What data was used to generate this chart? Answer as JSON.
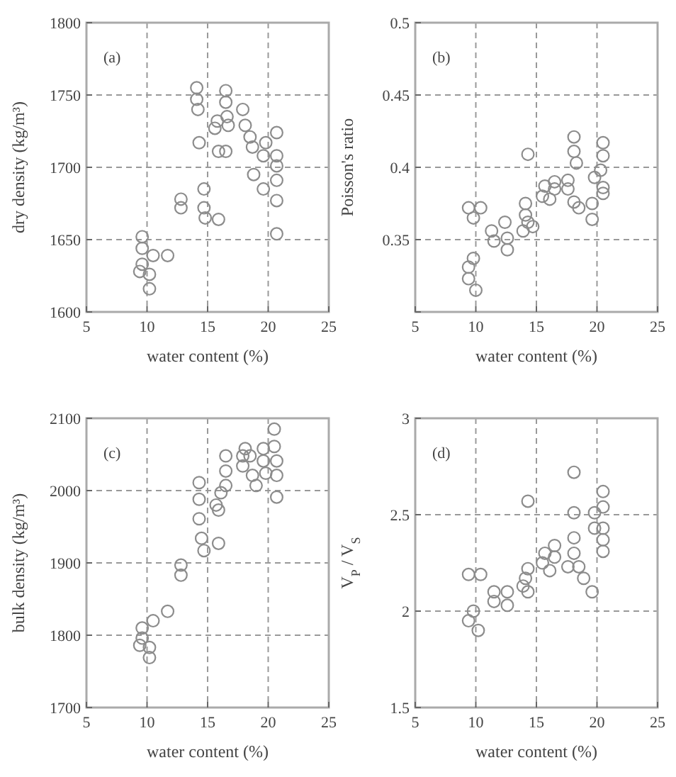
{
  "chart_data": [
    {
      "type": "scatter",
      "xlabel": "water content (%)",
      "ylabel": "dry density (kg/m³)",
      "annotations": [
        "(a)"
      ],
      "xlim": [
        5,
        25
      ],
      "xticks": [
        5,
        10,
        15,
        20,
        25
      ],
      "ylim": [
        1600,
        1800
      ],
      "yticks": [
        1600,
        1650,
        1700,
        1750,
        1800
      ],
      "grid": true,
      "marker": "circle",
      "series": [
        {
          "color": "#8c8c8c",
          "x": [
            14.1,
            14.1,
            14.2,
            16.5,
            16.5,
            16.6,
            16.7,
            15.8,
            15.6,
            14.3,
            15.9,
            16.5,
            17.9,
            18.1,
            18.5,
            18.7,
            19.8,
            20.7,
            20.7,
            19.6,
            20.7,
            20.7,
            18.8,
            19.6,
            20.7,
            12.8,
            12.8,
            14.7,
            14.7,
            14.8,
            15.9,
            20.7,
            9.6,
            9.6,
            10.5,
            11.7,
            9.6,
            10.2,
            10.2,
            9.4
          ],
          "values": [
            1755,
            1747,
            1740,
            1753,
            1745,
            1735,
            1729,
            1732,
            1727,
            1717,
            1711,
            1711,
            1740,
            1729,
            1721,
            1714,
            1717,
            1724,
            1708,
            1708,
            1701,
            1691,
            1695,
            1685,
            1677,
            1678,
            1672,
            1685,
            1672,
            1665,
            1664,
            1654,
            1652,
            1644,
            1639,
            1639,
            1633,
            1626,
            1616,
            1628
          ]
        }
      ]
    },
    {
      "type": "scatter",
      "xlabel": "water content (%)",
      "ylabel": "Poisson's ratio",
      "annotations": [
        "(b)"
      ],
      "xlim": [
        5,
        25
      ],
      "xticks": [
        5,
        10,
        15,
        20,
        25
      ],
      "ylim": [
        0.3,
        0.5
      ],
      "yticks": [
        {
          "value": 0.3,
          "label": null
        },
        0.35,
        0.4,
        0.45,
        0.5
      ],
      "grid": true,
      "marker": "circle",
      "series": [
        {
          "color": "#8c8c8c",
          "x": [
            14.3,
            18.1,
            18.1,
            18.3,
            17.6,
            17.6,
            18.1,
            18.5,
            19.6,
            19.6,
            20.5,
            20.5,
            20.3,
            19.8,
            20.5,
            20.5,
            16.5,
            16.5,
            15.7,
            15.5,
            16.1,
            14.1,
            14.1,
            14.3,
            13.9,
            14.7,
            12.4,
            12.6,
            12.6,
            11.3,
            11.5,
            9.4,
            10.4,
            9.8,
            9.4,
            9.4,
            10.0,
            9.8
          ],
          "values": [
            0.409,
            0.421,
            0.411,
            0.403,
            0.391,
            0.385,
            0.376,
            0.372,
            0.364,
            0.375,
            0.417,
            0.408,
            0.398,
            0.393,
            0.386,
            0.382,
            0.39,
            0.385,
            0.387,
            0.38,
            0.378,
            0.375,
            0.367,
            0.362,
            0.356,
            0.359,
            0.362,
            0.351,
            0.343,
            0.356,
            0.349,
            0.372,
            0.372,
            0.365,
            0.331,
            0.323,
            0.315,
            0.337
          ]
        }
      ]
    },
    {
      "type": "scatter",
      "xlabel": "water content (%)",
      "ylabel": "bulk density (kg/m³)",
      "annotations": [
        "(c)"
      ],
      "xlim": [
        5,
        25
      ],
      "xticks": [
        5,
        10,
        15,
        20,
        25
      ],
      "ylim": [
        1700,
        2100
      ],
      "yticks": [
        1700,
        1800,
        1900,
        2000,
        2100
      ],
      "grid": true,
      "marker": "circle",
      "series": [
        {
          "color": "#8c8c8c",
          "x": [
            20.5,
            20.5,
            20.7,
            20.7,
            20.7,
            19.6,
            19.6,
            19.8,
            19.0,
            18.7,
            18.5,
            17.9,
            18.1,
            17.9,
            16.5,
            16.5,
            16.5,
            16.1,
            15.7,
            15.9,
            14.3,
            14.3,
            14.3,
            14.5,
            14.7,
            15.9,
            12.8,
            12.8,
            11.7,
            10.5,
            9.6,
            9.6,
            10.2,
            10.2,
            9.4
          ],
          "values": [
            2085,
            2061,
            2041,
            2021,
            1991,
            2058,
            2041,
            2024,
            2007,
            2021,
            2048,
            2048,
            2058,
            2034,
            2048,
            2027,
            2007,
            1997,
            1980,
            1973,
            2011,
            1988,
            1961,
            1934,
            1917,
            1927,
            1897,
            1883,
            1833,
            1820,
            1810,
            1796,
            1783,
            1769,
            1786
          ]
        }
      ]
    },
    {
      "type": "scatter",
      "xlabel": "water content (%)",
      "ylabel": "V$_{P}$ / V$_{S}$",
      "annotations": [
        "(d)"
      ],
      "xlim": [
        5,
        25
      ],
      "xticks": [
        5,
        10,
        15,
        20,
        25
      ],
      "ylim": [
        1.5,
        3
      ],
      "yticks": [
        1.5,
        2,
        2.5,
        3
      ],
      "grid": true,
      "marker": "circle",
      "series": [
        {
          "color": "#8c8c8c",
          "x": [
            18.1,
            14.3,
            20.5,
            20.5,
            19.8,
            20.5,
            20.5,
            20.5,
            19.8,
            18.1,
            18.1,
            18.1,
            18.5,
            18.9,
            19.6,
            17.6,
            16.5,
            16.5,
            15.7,
            15.5,
            16.1,
            14.3,
            14.1,
            14.3,
            13.9,
            12.6,
            12.6,
            11.5,
            11.5,
            9.4,
            10.4,
            9.8,
            9.4,
            10.2
          ],
          "values": [
            2.72,
            2.57,
            2.62,
            2.54,
            2.43,
            2.43,
            2.37,
            2.31,
            2.51,
            2.51,
            2.38,
            2.3,
            2.23,
            2.17,
            2.1,
            2.23,
            2.34,
            2.28,
            2.3,
            2.25,
            2.21,
            2.22,
            2.17,
            2.1,
            2.13,
            2.1,
            2.03,
            2.1,
            2.05,
            2.19,
            2.19,
            2.0,
            1.95,
            1.9
          ]
        }
      ]
    }
  ]
}
